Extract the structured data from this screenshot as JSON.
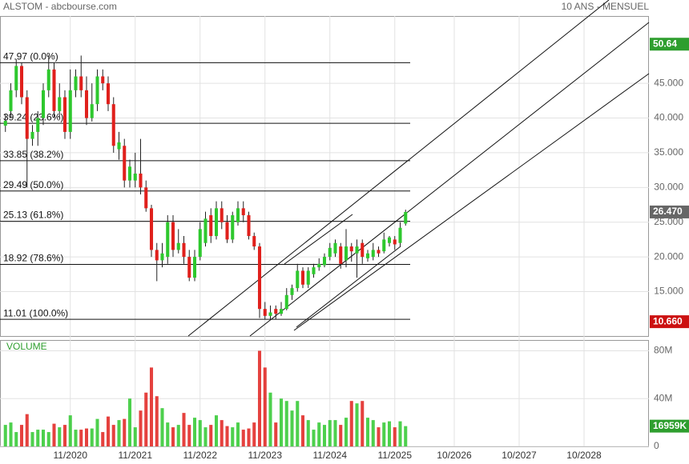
{
  "chart_data": {
    "type": "candlestick",
    "title": "ALSTOM - abcbourse.com",
    "subtitle": "10 ANS - MENSUEL",
    "x": [
      "11/2019",
      "12/2019",
      "01/2020",
      "02/2020",
      "03/2020",
      "04/2020",
      "05/2020",
      "06/2020",
      "07/2020",
      "08/2020",
      "09/2020",
      "10/2020",
      "11/2020",
      "12/2020",
      "01/2021",
      "02/2021",
      "03/2021",
      "04/2021",
      "05/2021",
      "06/2021",
      "07/2021",
      "08/2021",
      "09/2021",
      "10/2021",
      "11/2021",
      "12/2021",
      "01/2022",
      "02/2022",
      "03/2022",
      "04/2022",
      "05/2022",
      "06/2022",
      "07/2022",
      "08/2022",
      "09/2022",
      "10/2022",
      "11/2022",
      "12/2022",
      "01/2023",
      "02/2023",
      "03/2023",
      "04/2023",
      "05/2023",
      "06/2023",
      "07/2023",
      "08/2023",
      "09/2023",
      "10/2023",
      "11/2023",
      "12/2023",
      "01/2024",
      "02/2024",
      "03/2024",
      "04/2024",
      "05/2024",
      "06/2024",
      "07/2024",
      "08/2024",
      "09/2024",
      "10/2024",
      "11/2024",
      "12/2024",
      "01/2025",
      "02/2025",
      "03/2025",
      "04/2025",
      "05/2025",
      "06/2025",
      "07/2025",
      "08/2025",
      "09/2025",
      "10/2025",
      "11/2025",
      "12/2025",
      "01/2026"
    ],
    "open": [
      38.9,
      41,
      44,
      47.5,
      43,
      37,
      38,
      40,
      44,
      47,
      41,
      43,
      38,
      44,
      46,
      44,
      40,
      42,
      46,
      45,
      42,
      35.5,
      36,
      31,
      31,
      32,
      30,
      27,
      21,
      19.5,
      20,
      25,
      21,
      22,
      20,
      17,
      20,
      22,
      26,
      23,
      27,
      25,
      22.5,
      25,
      27,
      26,
      23,
      21.5,
      12.5,
      11.5,
      12.5,
      11.8,
      12.5,
      14.5,
      15.5,
      18,
      16,
      17.5,
      18.5,
      18.8,
      20,
      20.5,
      21.5,
      19.5,
      21.5,
      20.5,
      22,
      19.8,
      20,
      21,
      20.8,
      22,
      22.5,
      22,
      24.8
    ],
    "high": [
      40.5,
      45,
      48.5,
      48,
      44,
      39,
      41,
      45,
      49,
      48,
      45,
      44,
      47,
      47,
      49,
      46,
      45,
      47,
      47,
      46,
      43,
      38,
      37,
      34,
      35,
      37,
      31,
      27.5,
      22,
      22,
      26,
      26,
      24,
      23,
      21,
      21,
      25,
      26.5,
      27,
      28,
      28,
      26,
      26.5,
      28,
      28,
      26.5,
      23.5,
      22,
      13.5,
      13,
      13,
      13.5,
      15.5,
      16,
      19,
      18.5,
      18.5,
      19,
      19.8,
      20.5,
      22,
      22.5,
      22,
      24,
      22,
      22.5,
      22.5,
      21,
      22,
      21.5,
      23.5,
      23,
      23,
      25,
      26.8
    ],
    "low": [
      38,
      40,
      43,
      42,
      30,
      36,
      36,
      39,
      43,
      40,
      40,
      37,
      37,
      43,
      43,
      39,
      39.5,
      41,
      44,
      41,
      35,
      34,
      30,
      30,
      30,
      29,
      26.5,
      20,
      16.5,
      18.5,
      19,
      20,
      20.5,
      19,
      16.5,
      16.5,
      19.5,
      21.5,
      22,
      22.5,
      24,
      22,
      22,
      24.5,
      25,
      22.5,
      21,
      11.2,
      11,
      11,
      11,
      11.5,
      12.3,
      13.8,
      15,
      15.5,
      15.5,
      17,
      18,
      18.5,
      19.5,
      20,
      18.3,
      18.5,
      19.3,
      17,
      19,
      19.3,
      19.5,
      20,
      20.5,
      21.5,
      21,
      21.5,
      24.5
    ],
    "close": [
      39.6,
      44,
      47.5,
      43,
      37,
      38,
      40,
      44,
      47,
      41,
      43,
      38,
      44,
      46,
      44,
      40,
      42,
      46,
      45,
      42,
      36,
      36.5,
      31,
      33,
      32,
      30,
      27,
      21,
      19.5,
      20.5,
      25,
      21,
      22,
      20,
      17,
      20,
      24,
      25.5,
      23,
      27,
      25,
      22.5,
      26,
      27,
      26,
      23,
      21.5,
      12.5,
      11.5,
      12,
      11.8,
      12.5,
      14.5,
      15.5,
      18,
      16,
      18,
      18.5,
      19,
      20,
      21.3,
      22,
      19,
      21.5,
      20.8,
      21.5,
      20,
      20.5,
      21,
      20.5,
      22.5,
      22.8,
      21.8,
      24.2,
      26.47
    ],
    "up_color": "#2ec82e",
    "down_color": "#e0201c",
    "xlim": [
      "10/2019",
      "10/2029"
    ],
    "xticks": [
      "11/2020",
      "11/2021",
      "11/2022",
      "11/2023",
      "11/2024",
      "11/2025",
      "10/2026",
      "10/2027",
      "10/2028"
    ],
    "ylim": [
      8.6,
      54.7
    ],
    "yticks": [
      {
        "value": 15,
        "label": "15.000"
      },
      {
        "value": 20,
        "label": "20.000"
      },
      {
        "value": 25,
        "label": "25.000"
      },
      {
        "value": 30,
        "label": "30.000"
      },
      {
        "value": 35,
        "label": "35.000"
      },
      {
        "value": 40,
        "label": "40.000"
      },
      {
        "value": 45,
        "label": "45.000"
      }
    ],
    "grid": true,
    "fib_levels": [
      {
        "value": 47.97,
        "label": "47.97  (0.0%)"
      },
      {
        "value": 39.24,
        "label": "39.24  (23.6%)"
      },
      {
        "value": 33.85,
        "label": "33.85  (38.2%)"
      },
      {
        "value": 29.49,
        "label": "29.49  (50.0%)"
      },
      {
        "value": 25.13,
        "label": "25.13  (61.8%)"
      },
      {
        "value": 18.92,
        "label": "18.92  (78.6%)"
      },
      {
        "value": 11.01,
        "label": "11.01  (100.0%)"
      }
    ],
    "price_markers": [
      {
        "value": 50.64,
        "label": "50.64",
        "color": "#2e9e2e"
      },
      {
        "value": 26.47,
        "label": "26.470",
        "color": "#666666"
      },
      {
        "value": 10.66,
        "label": "10.660",
        "color": "#cc1111"
      }
    ],
    "volume": {
      "label": "VOLUME",
      "values": [
        18,
        20,
        12,
        18,
        27,
        12,
        14,
        14,
        12,
        19,
        16,
        18,
        26,
        14,
        14,
        15,
        15,
        23,
        12,
        25,
        18,
        22,
        23,
        40,
        16,
        30,
        45,
        66,
        42,
        32,
        20,
        16,
        18,
        28,
        18,
        24,
        22,
        16,
        18,
        26,
        22,
        17,
        16,
        20,
        14,
        15,
        20,
        80,
        66,
        45,
        20,
        40,
        38,
        30,
        38,
        26,
        22,
        14,
        20,
        18,
        22,
        22,
        18,
        24,
        38,
        36,
        38,
        24,
        22,
        16,
        20,
        21,
        16,
        21,
        16.959
      ],
      "ylim": [
        0,
        89
      ],
      "yticks": [
        0,
        {
          "value": 40,
          "label": "40M"
        },
        {
          "value": 80,
          "label": "80M"
        }
      ],
      "marker": {
        "value": 16.959,
        "label": "16959K",
        "color": "#2e9e2e"
      }
    }
  }
}
